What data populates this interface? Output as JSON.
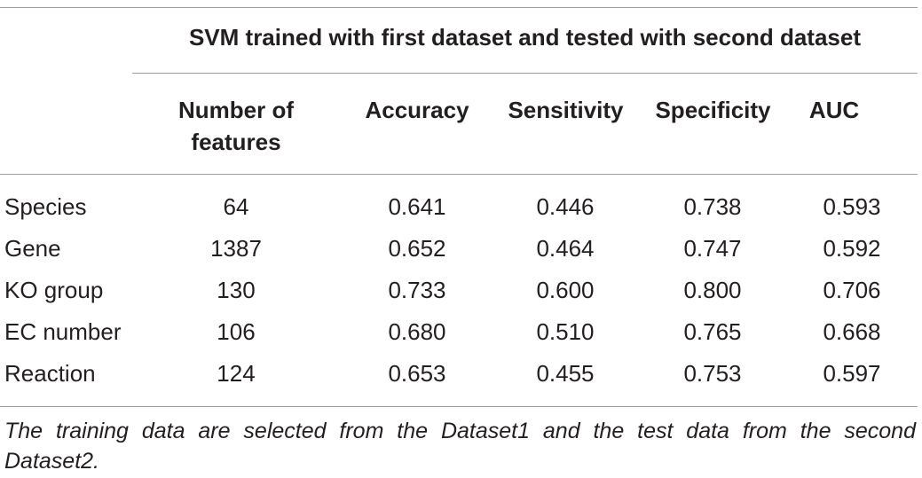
{
  "table": {
    "span_title": "SVM trained with first dataset and tested with second dataset",
    "columns": [
      "",
      "Number of features",
      "Accuracy",
      "Sensitivity",
      "Specificity",
      "AUC"
    ],
    "column_header_lines": {
      "features_line1": "Number of",
      "features_line2": "features"
    },
    "rows": [
      [
        "Species",
        "64",
        "0.641",
        "0.446",
        "0.738",
        "0.593"
      ],
      [
        "Gene",
        "1387",
        "0.652",
        "0.464",
        "0.747",
        "0.592"
      ],
      [
        "KO group",
        "130",
        "0.733",
        "0.600",
        "0.800",
        "0.706"
      ],
      [
        "EC number",
        "106",
        "0.680",
        "0.510",
        "0.765",
        "0.668"
      ],
      [
        "Reaction",
        "124",
        "0.653",
        "0.455",
        "0.753",
        "0.597"
      ]
    ],
    "footnote": "The training data are selected from the Dataset1 and the test data from the second Dataset2."
  }
}
